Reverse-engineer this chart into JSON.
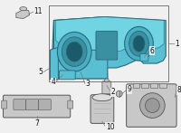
{
  "bg_color": "#f0f0f0",
  "cluster_blue": "#5bbfd4",
  "cluster_blue2": "#4aafc4",
  "cluster_dark": "#3a90a0",
  "cluster_edge": "#2a6878",
  "gray_part": "#c8c8c8",
  "gray_edge": "#555555",
  "box_edge": "#666666",
  "line_color": "#777777",
  "label_color": "#111111",
  "fs": 5.5
}
